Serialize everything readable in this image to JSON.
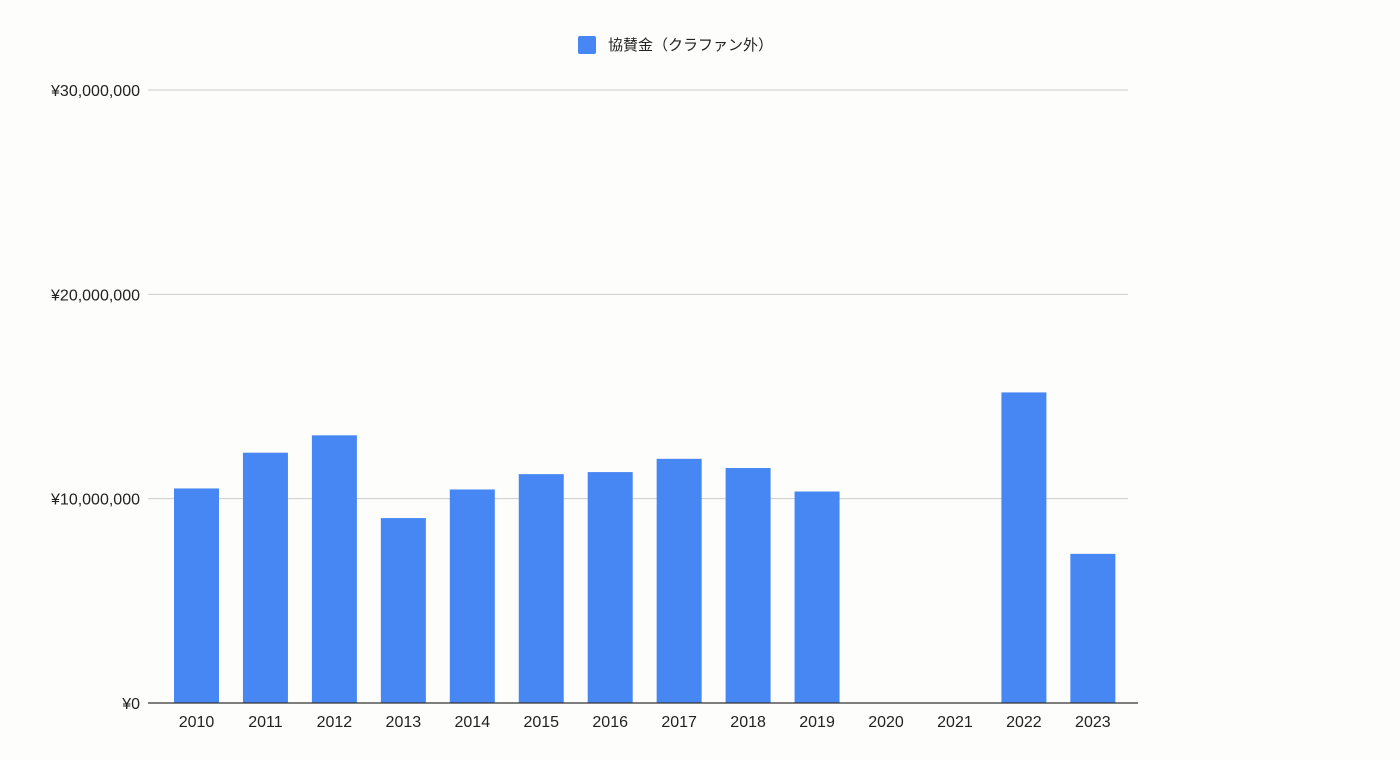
{
  "chart_data": {
    "type": "bar",
    "title": "",
    "xlabel": "",
    "ylabel": "",
    "categories": [
      "2010",
      "2011",
      "2012",
      "2013",
      "2014",
      "2015",
      "2016",
      "2017",
      "2018",
      "2019",
      "2020",
      "2021",
      "2022",
      "2023"
    ],
    "series": [
      {
        "name": "協賛金（クラファン外）",
        "color": "#4787f3",
        "values": [
          10500000,
          12250000,
          13100000,
          9050000,
          10450000,
          11200000,
          11300000,
          11950000,
          11500000,
          10350000,
          0,
          0,
          15200000,
          7300000
        ]
      }
    ],
    "ylim": [
      0,
      30000000
    ],
    "yticks": [
      0,
      10000000,
      20000000,
      30000000
    ],
    "ytick_labels": [
      "¥0",
      "¥10,000,000",
      "¥20,000,000",
      "¥30,000,000"
    ],
    "grid": true,
    "legend_position": "top-center"
  }
}
